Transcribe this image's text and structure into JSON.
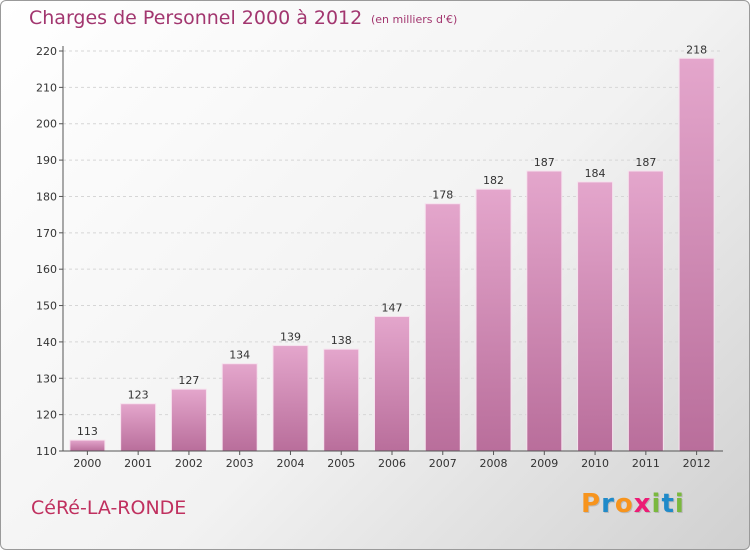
{
  "header": {
    "title": "Charges de Personnel 2000 à 2012",
    "subtitle": "(en milliers d'€)"
  },
  "footer": {
    "place": "CéRé-LA-RONDE",
    "logo_text": "Proxiti"
  },
  "colors": {
    "bar_top": "#e4a6cc",
    "bar_bottom": "#b96e9b",
    "title": "#a2366f",
    "logo": [
      "#f7941d",
      "#1f8ac9",
      "#f7941d",
      "#ec1c75",
      "#7ab83e",
      "#1f8ac9",
      "#7ab83e"
    ]
  },
  "chart_data": {
    "type": "bar",
    "title": "Charges de Personnel 2000 à 2012",
    "subtitle": "(en milliers d'€)",
    "categories": [
      "2000",
      "2001",
      "2002",
      "2003",
      "2004",
      "2005",
      "2006",
      "2007",
      "2008",
      "2009",
      "2010",
      "2011",
      "2012"
    ],
    "values": [
      113,
      123,
      127,
      134,
      139,
      138,
      147,
      178,
      182,
      187,
      184,
      187,
      218
    ],
    "value_labels": [
      "113",
      "123",
      "127",
      "134",
      "139",
      "138",
      "147",
      "178",
      "182",
      "187",
      "184",
      "187",
      "218"
    ],
    "ylim": [
      110,
      220
    ],
    "yticks": [
      110,
      120,
      130,
      140,
      150,
      160,
      170,
      180,
      190,
      200,
      210,
      220
    ],
    "ytick_labels": [
      "110",
      "120",
      "130",
      "140",
      "150",
      "160",
      "170",
      "180",
      "190",
      "200",
      "210",
      "220"
    ],
    "grid": true,
    "xlabel": "",
    "ylabel": ""
  }
}
